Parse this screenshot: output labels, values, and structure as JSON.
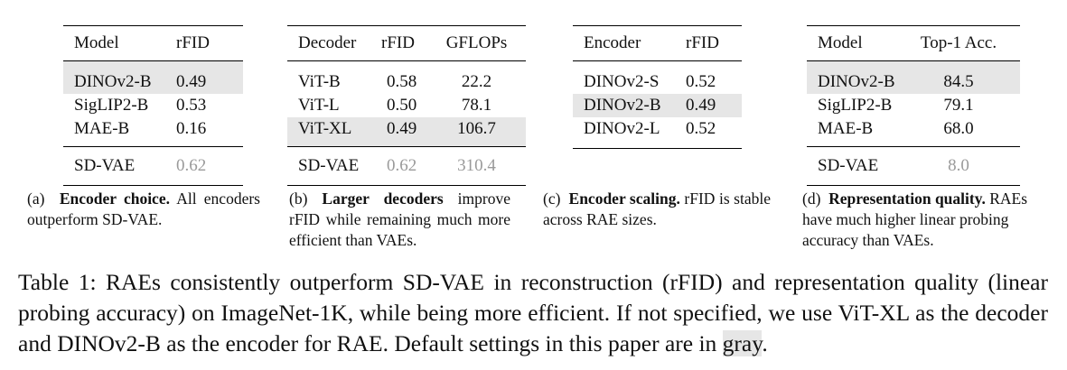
{
  "tables": {
    "a": {
      "headers": [
        "Model",
        "rFID"
      ],
      "rows": [
        {
          "cells": [
            "DINOv2-B",
            "0.49"
          ],
          "highlight": true
        },
        {
          "cells": [
            "SigLIP2-B",
            "0.53"
          ],
          "highlight": false
        },
        {
          "cells": [
            "MAE-B",
            "0.16"
          ],
          "highlight": false
        }
      ],
      "baseline": [
        "SD-VAE",
        "0.62"
      ],
      "caption_label": "(a)",
      "caption_bold": "Encoder choice.",
      "caption_text": "All encoders outperform SD-VAE."
    },
    "b": {
      "headers": [
        "Decoder",
        "rFID",
        "GFLOPs"
      ],
      "rows": [
        {
          "cells": [
            "ViT-B",
            "0.58",
            "22.2"
          ],
          "highlight": false
        },
        {
          "cells": [
            "ViT-L",
            "0.50",
            "78.1"
          ],
          "highlight": false
        },
        {
          "cells": [
            "ViT-XL",
            "0.49",
            "106.7"
          ],
          "highlight": true
        }
      ],
      "baseline": [
        "SD-VAE",
        "0.62",
        "310.4"
      ],
      "caption_label": "(b)",
      "caption_bold": "Larger decoders",
      "caption_text": "improve rFID while remaining much more efficient than VAEs."
    },
    "c": {
      "headers": [
        "Encoder",
        "rFID"
      ],
      "rows": [
        {
          "cells": [
            "DINOv2-S",
            "0.52"
          ],
          "highlight": false
        },
        {
          "cells": [
            "DINOv2-B",
            "0.49"
          ],
          "highlight": true
        },
        {
          "cells": [
            "DINOv2-L",
            "0.52"
          ],
          "highlight": false
        }
      ],
      "caption_label": "(c)",
      "caption_bold": "Encoder scaling.",
      "caption_text": "rFID is stable across RAE sizes."
    },
    "d": {
      "headers": [
        "Model",
        "Top-1 Acc."
      ],
      "rows": [
        {
          "cells": [
            "DINOv2-B",
            "84.5"
          ],
          "highlight": true
        },
        {
          "cells": [
            "SigLIP2-B",
            "79.1"
          ],
          "highlight": false
        },
        {
          "cells": [
            "MAE-B",
            "68.0"
          ],
          "highlight": false
        }
      ],
      "baseline": [
        "SD-VAE",
        "8.0"
      ],
      "caption_label": "(d)",
      "caption_bold": "Representation quality.",
      "caption_text": "RAEs have much higher linear probing accuracy than VAEs."
    }
  },
  "main_caption": {
    "text_before": "Table 1: RAEs consistently outperform SD-VAE in reconstruction (rFID) and representation quality (linear probing accuracy) on ImageNet-1K, while being more efficient. If not specified, we use ViT-XL as the decoder and DINOv2-B as the encoder for RAE. Default settings in this paper are in ",
    "highlight_word": "gray",
    "text_after": "."
  }
}
